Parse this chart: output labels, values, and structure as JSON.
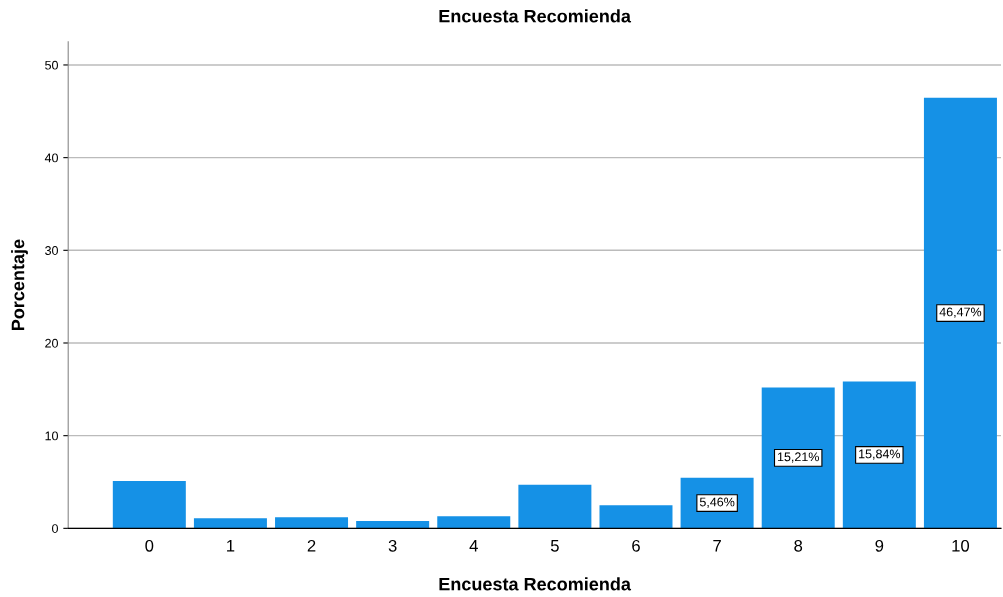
{
  "chart_data": {
    "type": "bar",
    "title": "Encuesta Recomienda",
    "xlabel": "Encuesta Recomienda",
    "ylabel": "Porcentaje",
    "categories": [
      "0",
      "1",
      "2",
      "3",
      "4",
      "5",
      "6",
      "7",
      "8",
      "9",
      "10"
    ],
    "series": [
      {
        "color": "#1591e6",
        "values": [
          5.1,
          1.1,
          1.2,
          0.8,
          1.3,
          4.7,
          2.5,
          5.46,
          15.21,
          15.84,
          46.47
        ],
        "value_labels": [
          null,
          null,
          null,
          null,
          null,
          null,
          null,
          "5,46%",
          "15,21%",
          "15,84%",
          "46,47%"
        ]
      }
    ],
    "ylim": [
      0,
      52.5
    ],
    "yticks": [
      0,
      10,
      20,
      30,
      40,
      50
    ],
    "grid": "y",
    "legend": false
  }
}
